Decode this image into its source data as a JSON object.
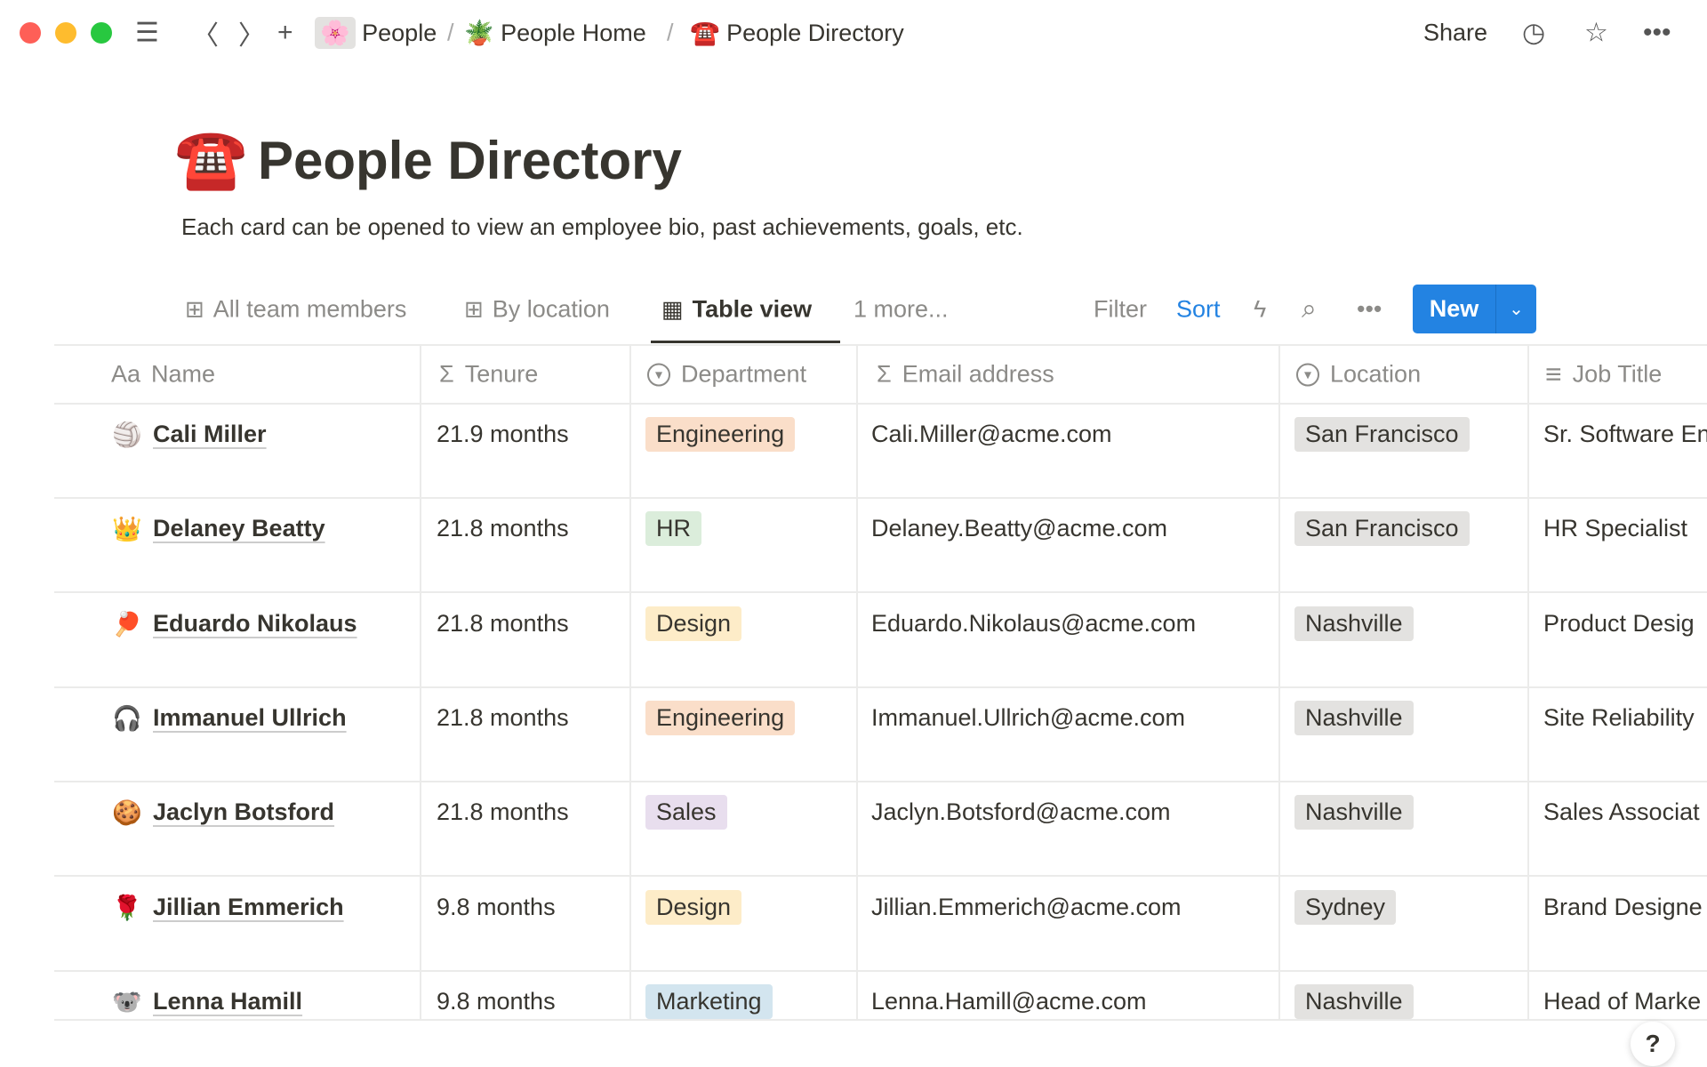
{
  "breadcrumb": [
    {
      "icon": "🌸",
      "label": "People"
    },
    {
      "icon": "🪴",
      "label": "People Home"
    },
    {
      "icon": "☎️",
      "label": "People Directory"
    }
  ],
  "topbar": {
    "share": "Share"
  },
  "page": {
    "icon": "☎️",
    "title": "People Directory",
    "description": "Each card can be opened to view an employee bio, past achievements, goals, etc."
  },
  "views": [
    {
      "label": "All team members",
      "icon": "gallery-icon"
    },
    {
      "label": "By location",
      "icon": "gallery-icon"
    },
    {
      "label": "Table view",
      "icon": "table-icon",
      "active": true
    },
    {
      "label": "1 more..."
    }
  ],
  "toolbar": {
    "filter": "Filter",
    "sort": "Sort",
    "new": "New"
  },
  "columns": [
    {
      "icon": "Aa",
      "label": "Name"
    },
    {
      "icon": "Σ",
      "label": "Tenure"
    },
    {
      "icon": "▾",
      "label": "Department"
    },
    {
      "icon": "Σ",
      "label": "Email address"
    },
    {
      "icon": "▾",
      "label": "Location"
    },
    {
      "icon": "≡",
      "label": "Job Title"
    }
  ],
  "rows": [
    {
      "emoji": "🏐",
      "name": "Cali Miller",
      "tenure": "21.9 months",
      "department": "Engineering",
      "email": "Cali.Miller@acme.com",
      "location": "San Francisco",
      "job": "Sr. Software En"
    },
    {
      "emoji": "👑",
      "name": "Delaney Beatty",
      "tenure": "21.8 months",
      "department": "HR",
      "email": "Delaney.Beatty@acme.com",
      "location": "San Francisco",
      "job": "HR Specialist"
    },
    {
      "emoji": "🏓",
      "name": "Eduardo Nikolaus",
      "tenure": "21.8 months",
      "department": "Design",
      "email": "Eduardo.Nikolaus@acme.com",
      "location": "Nashville",
      "job": "Product Desig"
    },
    {
      "emoji": "🎧",
      "name": "Immanuel Ullrich",
      "tenure": "21.8 months",
      "department": "Engineering",
      "email": "Immanuel.Ullrich@acme.com",
      "location": "Nashville",
      "job": "Site Reliability"
    },
    {
      "emoji": "🍪",
      "name": "Jaclyn Botsford",
      "tenure": "21.8 months",
      "department": "Sales",
      "email": "Jaclyn.Botsford@acme.com",
      "location": "Nashville",
      "job": "Sales Associat"
    },
    {
      "emoji": "🌹",
      "name": "Jillian Emmerich",
      "tenure": "9.8 months",
      "department": "Design",
      "email": "Jillian.Emmerich@acme.com",
      "location": "Sydney",
      "job": "Brand Designe"
    },
    {
      "emoji": "🐨",
      "name": "Lenna Hamill",
      "tenure": "9.8 months",
      "department": "Marketing",
      "email": "Lenna.Hamill@acme.com",
      "location": "Nashville",
      "job": "Head of Marke"
    }
  ],
  "department_colors": {
    "Engineering": "#fadec9",
    "HR": "#dbeddb",
    "Design": "#fdecc8",
    "Sales": "#e8deee",
    "Marketing": "#d3e5ef"
  },
  "location_color": "#e3e2e0",
  "accent": "#2383e2",
  "help": "?"
}
